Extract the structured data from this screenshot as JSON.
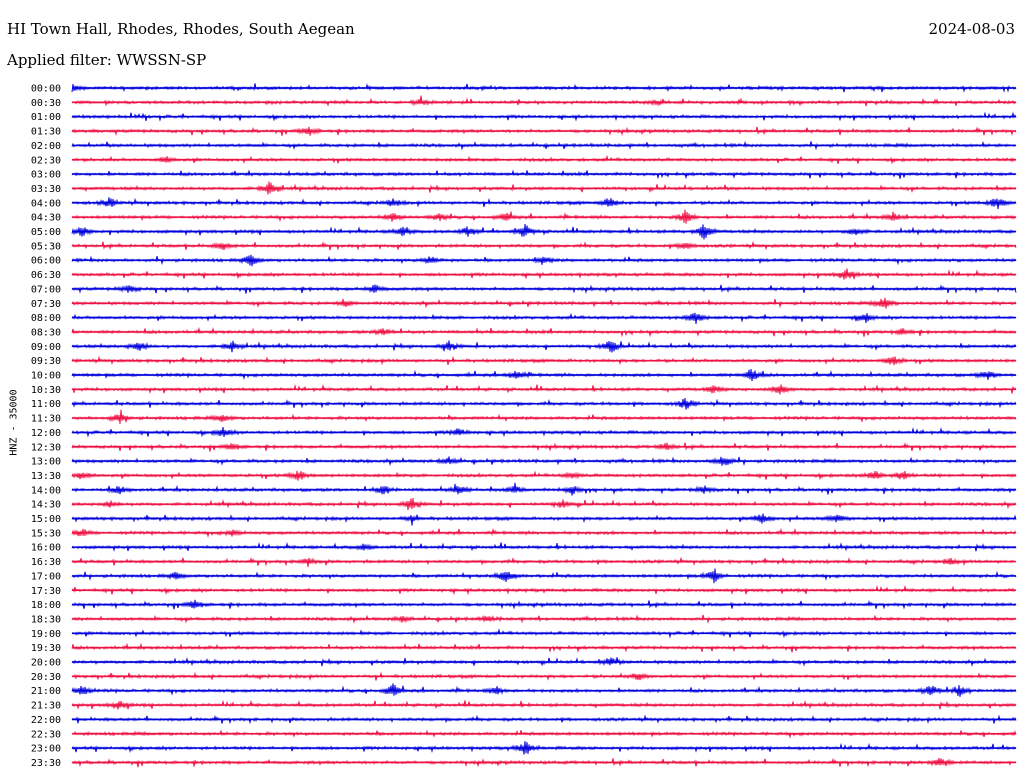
{
  "header": {
    "station": "HI Town Hall, Rhodes, Rhodes, South Aegean",
    "date": "2024-08-03",
    "filter": "Applied filter: WWSSN-SP"
  },
  "chart_data": {
    "type": "line",
    "title": "HI Town Hall, Rhodes, Rhodes, South Aegean",
    "ylabel": "HNZ - 35000",
    "xlabel": "",
    "rows": [
      "00:00",
      "00:30",
      "01:00",
      "01:30",
      "02:00",
      "02:30",
      "03:00",
      "03:30",
      "04:00",
      "04:30",
      "05:00",
      "05:30",
      "06:00",
      "06:30",
      "07:00",
      "07:30",
      "08:00",
      "08:30",
      "09:00",
      "09:30",
      "10:00",
      "10:30",
      "11:00",
      "11:30",
      "12:00",
      "12:30",
      "13:00",
      "13:30",
      "14:00",
      "14:30",
      "15:00",
      "15:30",
      "16:00",
      "16:30",
      "17:00",
      "17:30",
      "18:00",
      "18:30",
      "19:00",
      "19:30",
      "20:00",
      "20:30",
      "21:00",
      "21:30",
      "22:00",
      "22:30",
      "23:00",
      "23:30"
    ],
    "trace_colors": [
      "#0000dd",
      "#ee1144"
    ],
    "events": [
      {
        "row": 0,
        "pos": 0.0,
        "amp": 4
      },
      {
        "row": 1,
        "pos": 0.37,
        "amp": 3
      },
      {
        "row": 1,
        "pos": 0.62,
        "amp": 2.5
      },
      {
        "row": 3,
        "pos": 0.25,
        "amp": 5
      },
      {
        "row": 5,
        "pos": 0.1,
        "amp": 3
      },
      {
        "row": 7,
        "pos": 0.21,
        "amp": 9
      },
      {
        "row": 8,
        "pos": 0.04,
        "amp": 5
      },
      {
        "row": 8,
        "pos": 0.34,
        "amp": 4
      },
      {
        "row": 8,
        "pos": 0.57,
        "amp": 6
      },
      {
        "row": 8,
        "pos": 0.98,
        "amp": 7
      },
      {
        "row": 9,
        "pos": 0.34,
        "amp": 5
      },
      {
        "row": 9,
        "pos": 0.39,
        "amp": 4
      },
      {
        "row": 9,
        "pos": 0.46,
        "amp": 4
      },
      {
        "row": 9,
        "pos": 0.65,
        "amp": 7
      },
      {
        "row": 9,
        "pos": 0.87,
        "amp": 5
      },
      {
        "row": 10,
        "pos": 0.01,
        "amp": 6
      },
      {
        "row": 10,
        "pos": 0.35,
        "amp": 5
      },
      {
        "row": 10,
        "pos": 0.42,
        "amp": 5
      },
      {
        "row": 10,
        "pos": 0.48,
        "amp": 7
      },
      {
        "row": 10,
        "pos": 0.67,
        "amp": 9
      },
      {
        "row": 10,
        "pos": 0.83,
        "amp": 4
      },
      {
        "row": 11,
        "pos": 0.16,
        "amp": 4
      },
      {
        "row": 11,
        "pos": 0.65,
        "amp": 4
      },
      {
        "row": 12,
        "pos": 0.19,
        "amp": 6
      },
      {
        "row": 12,
        "pos": 0.38,
        "amp": 4
      },
      {
        "row": 12,
        "pos": 0.5,
        "amp": 4
      },
      {
        "row": 13,
        "pos": 0.82,
        "amp": 7
      },
      {
        "row": 14,
        "pos": 0.06,
        "amp": 4
      },
      {
        "row": 14,
        "pos": 0.32,
        "amp": 4
      },
      {
        "row": 15,
        "pos": 0.29,
        "amp": 3
      },
      {
        "row": 15,
        "pos": 0.86,
        "amp": 7
      },
      {
        "row": 16,
        "pos": 0.66,
        "amp": 7
      },
      {
        "row": 16,
        "pos": 0.84,
        "amp": 5
      },
      {
        "row": 17,
        "pos": 0.33,
        "amp": 4
      },
      {
        "row": 17,
        "pos": 0.88,
        "amp": 3
      },
      {
        "row": 18,
        "pos": 0.07,
        "amp": 6
      },
      {
        "row": 18,
        "pos": 0.17,
        "amp": 6
      },
      {
        "row": 18,
        "pos": 0.4,
        "amp": 5
      },
      {
        "row": 18,
        "pos": 0.57,
        "amp": 8
      },
      {
        "row": 19,
        "pos": 0.87,
        "amp": 6
      },
      {
        "row": 20,
        "pos": 0.47,
        "amp": 5
      },
      {
        "row": 20,
        "pos": 0.72,
        "amp": 8
      },
      {
        "row": 20,
        "pos": 0.97,
        "amp": 5
      },
      {
        "row": 21,
        "pos": 0.75,
        "amp": 7
      },
      {
        "row": 21,
        "pos": 0.68,
        "amp": 4
      },
      {
        "row": 22,
        "pos": 0.65,
        "amp": 6
      },
      {
        "row": 23,
        "pos": 0.05,
        "amp": 6
      },
      {
        "row": 23,
        "pos": 0.16,
        "amp": 4
      },
      {
        "row": 24,
        "pos": 0.16,
        "amp": 5
      },
      {
        "row": 24,
        "pos": 0.41,
        "amp": 4
      },
      {
        "row": 25,
        "pos": 0.17,
        "amp": 4
      },
      {
        "row": 25,
        "pos": 0.63,
        "amp": 4
      },
      {
        "row": 26,
        "pos": 0.4,
        "amp": 4
      },
      {
        "row": 26,
        "pos": 0.69,
        "amp": 7
      },
      {
        "row": 27,
        "pos": 0.01,
        "amp": 4
      },
      {
        "row": 27,
        "pos": 0.24,
        "amp": 6
      },
      {
        "row": 27,
        "pos": 0.53,
        "amp": 3
      },
      {
        "row": 27,
        "pos": 0.85,
        "amp": 6
      },
      {
        "row": 27,
        "pos": 0.88,
        "amp": 5
      },
      {
        "row": 28,
        "pos": 0.05,
        "amp": 4
      },
      {
        "row": 28,
        "pos": 0.33,
        "amp": 5
      },
      {
        "row": 28,
        "pos": 0.41,
        "amp": 5
      },
      {
        "row": 28,
        "pos": 0.47,
        "amp": 4
      },
      {
        "row": 28,
        "pos": 0.53,
        "amp": 5
      },
      {
        "row": 28,
        "pos": 0.67,
        "amp": 4
      },
      {
        "row": 29,
        "pos": 0.04,
        "amp": 3
      },
      {
        "row": 29,
        "pos": 0.36,
        "amp": 6
      },
      {
        "row": 29,
        "pos": 0.52,
        "amp": 4
      },
      {
        "row": 30,
        "pos": 0.36,
        "amp": 3
      },
      {
        "row": 30,
        "pos": 0.73,
        "amp": 6
      },
      {
        "row": 30,
        "pos": 0.81,
        "amp": 5
      },
      {
        "row": 31,
        "pos": 0.01,
        "amp": 4
      },
      {
        "row": 31,
        "pos": 0.17,
        "amp": 3
      },
      {
        "row": 32,
        "pos": 0.31,
        "amp": 3
      },
      {
        "row": 33,
        "pos": 0.25,
        "amp": 4
      },
      {
        "row": 33,
        "pos": 0.93,
        "amp": 3
      },
      {
        "row": 34,
        "pos": 0.11,
        "amp": 3
      },
      {
        "row": 34,
        "pos": 0.46,
        "amp": 8
      },
      {
        "row": 34,
        "pos": 0.68,
        "amp": 8
      },
      {
        "row": 36,
        "pos": 0.13,
        "amp": 5
      },
      {
        "row": 37,
        "pos": 0.35,
        "amp": 3
      },
      {
        "row": 37,
        "pos": 0.44,
        "amp": 3
      },
      {
        "row": 40,
        "pos": 0.57,
        "amp": 5
      },
      {
        "row": 41,
        "pos": 0.6,
        "amp": 4
      },
      {
        "row": 42,
        "pos": 0.01,
        "amp": 6
      },
      {
        "row": 42,
        "pos": 0.34,
        "amp": 7
      },
      {
        "row": 42,
        "pos": 0.45,
        "amp": 4
      },
      {
        "row": 42,
        "pos": 0.91,
        "amp": 7
      },
      {
        "row": 42,
        "pos": 0.94,
        "amp": 6
      },
      {
        "row": 43,
        "pos": 0.05,
        "amp": 5
      },
      {
        "row": 46,
        "pos": 0.48,
        "amp": 8
      },
      {
        "row": 47,
        "pos": 0.92,
        "amp": 6
      }
    ]
  }
}
